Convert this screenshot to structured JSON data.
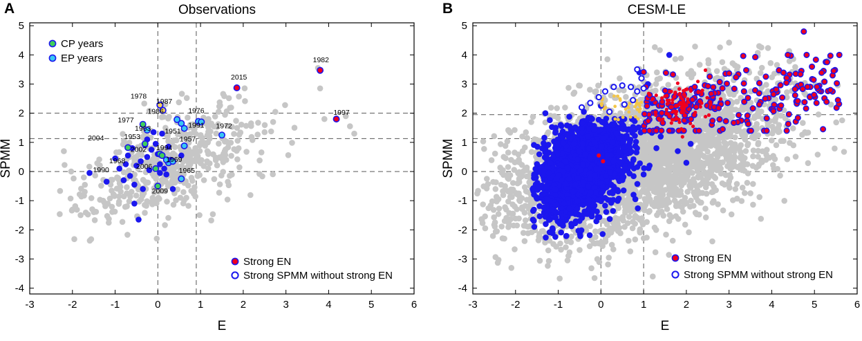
{
  "colors": {
    "gray": "#c6c6c6",
    "blue": "#1b17ee",
    "red": "#f0001e",
    "orange": "#f3c64a",
    "cp": "#3fcf5a",
    "ep": "#39c8f2",
    "frame": "#000000",
    "dash": "#555555"
  },
  "chart_data": [
    {
      "type": "scatter",
      "panel": "A",
      "title": "Observations",
      "xlabel": "E",
      "ylabel": "SPMM",
      "xlim": [
        -3,
        6
      ],
      "ylim": [
        -4.2,
        5.1
      ],
      "xticks": [
        -3,
        -2,
        -1,
        0,
        1,
        2,
        3,
        4,
        5,
        6
      ],
      "yticks": [
        -4,
        -3,
        -2,
        -1,
        0,
        1,
        2,
        3,
        4,
        5
      ],
      "dashed_vlines": [
        0,
        0.9
      ],
      "dashed_hlines": [
        2.0,
        1.13,
        0
      ],
      "legend_top": [
        {
          "label": "CP years",
          "marker": "cp"
        },
        {
          "label": "EP years",
          "marker": "ep"
        }
      ],
      "legend_bottom": [
        {
          "label": "Strong EN",
          "marker": "red-on-blue"
        },
        {
          "label": "Strong SPMM without strong EN",
          "marker": "blue-ring"
        }
      ],
      "gray_cloud": {
        "center": [
          0.3,
          0.3
        ],
        "spread": [
          1.0,
          1.0
        ],
        "n": 520,
        "corr": 0.55
      },
      "gray_extra": [
        [
          3.75,
          3.55
        ],
        [
          3.8,
          2.85
        ],
        [
          4.4,
          1.9
        ],
        [
          4.5,
          1.55
        ],
        [
          4.6,
          1.3
        ],
        [
          3.9,
          1.8
        ],
        [
          3.2,
          1.5
        ],
        [
          2.7,
          1.7
        ],
        [
          2.5,
          1.35
        ]
      ],
      "blue_points": [
        [
          -1.6,
          -0.05
        ],
        [
          -1.2,
          -0.35
        ],
        [
          -1.0,
          0.45
        ],
        [
          -0.9,
          0.1
        ],
        [
          -0.8,
          -0.3
        ],
        [
          -0.7,
          0.55
        ],
        [
          -0.6,
          0.8
        ],
        [
          -0.55,
          -0.45
        ],
        [
          -0.5,
          0.2
        ],
        [
          -0.45,
          -1.65
        ],
        [
          -0.4,
          0.35
        ],
        [
          -0.3,
          0.9
        ],
        [
          -0.25,
          0.5
        ],
        [
          -0.2,
          0.05
        ],
        [
          -0.15,
          0.75
        ],
        [
          -0.1,
          1.35
        ],
        [
          -0.05,
          0.95
        ],
        [
          0.0,
          0.6
        ],
        [
          0.05,
          0.25
        ],
        [
          0.1,
          1.3
        ],
        [
          0.15,
          0.1
        ],
        [
          0.2,
          -0.1
        ],
        [
          0.25,
          0.85
        ],
        [
          0.3,
          0.4
        ],
        [
          -0.35,
          -0.6
        ],
        [
          -0.55,
          -1.1
        ],
        [
          -0.25,
          1.1
        ],
        [
          0.05,
          -0.05
        ],
        [
          -0.75,
          0.25
        ],
        [
          -0.65,
          -0.15
        ],
        [
          0.35,
          -0.6
        ],
        [
          0.55,
          0.55
        ]
      ],
      "red_points": [
        [
          1.85,
          2.87
        ],
        [
          3.8,
          3.47
        ],
        [
          4.18,
          1.8
        ]
      ],
      "ring_points": [
        [
          0.05,
          2.28
        ],
        [
          0.12,
          2.1
        ]
      ],
      "cp_points": [
        [
          -0.35,
          1.62
        ],
        [
          -0.3,
          0.95
        ],
        [
          -0.7,
          0.82
        ],
        [
          0.05,
          0.6
        ],
        [
          -0.05,
          0.1
        ],
        [
          0.0,
          -0.5
        ],
        [
          0.1,
          0.55
        ]
      ],
      "ep_points": [
        [
          -0.25,
          1.42
        ],
        [
          0.45,
          1.78
        ],
        [
          0.55,
          1.65
        ],
        [
          0.95,
          1.72
        ],
        [
          1.02,
          1.7
        ],
        [
          0.62,
          1.48
        ],
        [
          1.5,
          1.25
        ],
        [
          0.62,
          0.88
        ],
        [
          0.25,
          0.3
        ],
        [
          0.35,
          0.35
        ],
        [
          0.55,
          -0.25
        ],
        [
          0.2,
          0.4
        ]
      ],
      "annotations": [
        {
          "text": "1982",
          "x": 3.82,
          "y": 3.75
        },
        {
          "text": "2015",
          "x": 1.9,
          "y": 3.15
        },
        {
          "text": "1997",
          "x": 4.3,
          "y": 1.95
        },
        {
          "text": "1978",
          "x": -0.45,
          "y": 2.5
        },
        {
          "text": "1987",
          "x": 0.15,
          "y": 2.32
        },
        {
          "text": "1986",
          "x": -0.05,
          "y": 1.98
        },
        {
          "text": "1976",
          "x": 0.9,
          "y": 2.0
        },
        {
          "text": "1977",
          "x": -0.75,
          "y": 1.68
        },
        {
          "text": "1963",
          "x": -0.35,
          "y": 1.4
        },
        {
          "text": "1991",
          "x": 0.9,
          "y": 1.5
        },
        {
          "text": "1951",
          "x": 0.35,
          "y": 1.3
        },
        {
          "text": "1972",
          "x": 1.55,
          "y": 1.48
        },
        {
          "text": "2004",
          "x": -1.45,
          "y": 1.07
        },
        {
          "text": "1953",
          "x": -0.6,
          "y": 1.12
        },
        {
          "text": "1957",
          "x": 0.7,
          "y": 1.03
        },
        {
          "text": "2002",
          "x": -0.45,
          "y": 0.67
        },
        {
          "text": "1994",
          "x": 0.15,
          "y": 0.73
        },
        {
          "text": "1969",
          "x": 0.38,
          "y": 0.33
        },
        {
          "text": "1990",
          "x": -1.33,
          "y": -0.03
        },
        {
          "text": "1968",
          "x": -0.95,
          "y": 0.28
        },
        {
          "text": "2006",
          "x": -0.32,
          "y": 0.1
        },
        {
          "text": "1965",
          "x": 0.68,
          "y": -0.05
        },
        {
          "text": "2009",
          "x": 0.05,
          "y": -0.75
        }
      ]
    },
    {
      "type": "scatter",
      "panel": "B",
      "title": "CESM-LE",
      "xlabel": "E",
      "ylabel": "SPMM",
      "xlim": [
        -3,
        6
      ],
      "ylim": [
        -4.2,
        5.1
      ],
      "xticks": [
        -3,
        -2,
        -1,
        0,
        1,
        2,
        3,
        4,
        5,
        6
      ],
      "yticks": [
        -4,
        -3,
        -2,
        -1,
        0,
        1,
        2,
        3,
        4,
        5
      ],
      "dashed_vlines": [
        0,
        1.0
      ],
      "dashed_hlines": [
        1.95,
        1.13,
        0
      ],
      "legend_bottom": [
        {
          "label": "Strong EN",
          "marker": "red-on-blue"
        },
        {
          "label": "Strong SPMM without strong EN",
          "marker": "blue-ring"
        }
      ],
      "gray_cloud": {
        "center": [
          0.9,
          0.5
        ],
        "spread": [
          1.6,
          1.3
        ],
        "n": 3200,
        "corr": 0.5
      },
      "blue_cloud": {
        "center": [
          -0.4,
          0.1
        ],
        "spread": [
          0.55,
          0.85
        ],
        "n": 1800,
        "corr": 0.35
      },
      "blue_extra": [
        [
          -1.3,
          2.0
        ],
        [
          -0.4,
          2.05
        ],
        [
          0.0,
          2.25
        ],
        [
          1.6,
          4.0
        ],
        [
          1.4,
          1.2
        ],
        [
          2.0,
          0.3
        ],
        [
          1.0,
          -0.1
        ],
        [
          1.3,
          0.8
        ],
        [
          2.1,
          0.95
        ],
        [
          1.2,
          2.35
        ],
        [
          1.8,
          0.7
        ],
        [
          0.9,
          3.4
        ],
        [
          1.1,
          3.0
        ]
      ],
      "red_region": {
        "x": [
          1.0,
          5.6
        ],
        "y": [
          1.4,
          4.0
        ],
        "n": 220,
        "corr": 0.6
      },
      "red_dense": {
        "center": [
          1.9,
          2.35
        ],
        "spread": [
          0.4,
          0.35
        ],
        "n": 70
      },
      "orange_region": {
        "x": [
          0.0,
          1.0
        ],
        "y": [
          1.75,
          2.6
        ],
        "n": 35
      },
      "ring_points": [
        [
          -0.45,
          2.2
        ],
        [
          -0.25,
          2.35
        ],
        [
          -0.05,
          2.55
        ],
        [
          0.1,
          2.75
        ],
        [
          0.3,
          2.9
        ],
        [
          0.5,
          2.95
        ],
        [
          0.7,
          2.9
        ],
        [
          0.85,
          2.75
        ],
        [
          0.95,
          3.2
        ],
        [
          0.55,
          2.3
        ],
        [
          0.2,
          2.05
        ],
        [
          0.75,
          2.45
        ],
        [
          0.85,
          3.5
        ],
        [
          1.0,
          2.85
        ]
      ],
      "red_highlight": [
        [
          4.75,
          4.8
        ],
        [
          5.2,
          1.45
        ],
        [
          5.55,
          2.45
        ],
        [
          5.45,
          3.45
        ],
        [
          4.35,
          1.4
        ],
        [
          2.85,
          1.45
        ],
        [
          3.35,
          2.75
        ],
        [
          0.05,
          0.35
        ],
        [
          -0.05,
          0.55
        ]
      ]
    }
  ]
}
